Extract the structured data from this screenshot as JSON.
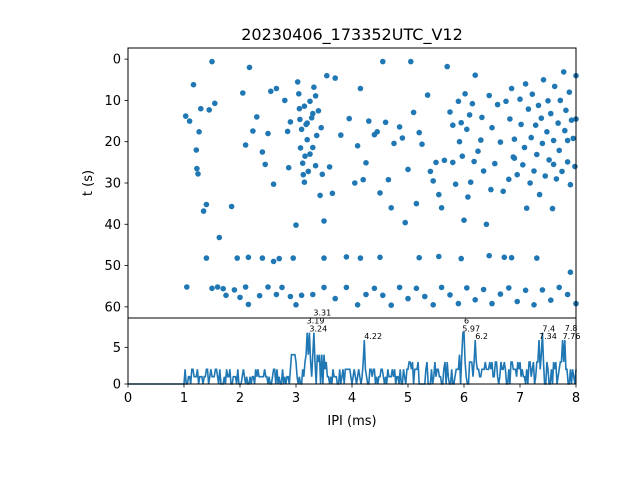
{
  "chart_data": [
    {
      "type": "scatter",
      "title": "20230406_173352UTC_V12",
      "xlabel": "",
      "ylabel": "t (s)",
      "xlim": [
        0,
        8
      ],
      "ylim": [
        62.7,
        -2.7
      ],
      "y_ticks": [
        0,
        10,
        20,
        30,
        40,
        50,
        60
      ],
      "y_tick_labels": [
        "0",
        "10",
        "20",
        "30",
        "40",
        "50",
        "60"
      ],
      "x_ticks": [
        0,
        1,
        2,
        3,
        4,
        5,
        6,
        7,
        8
      ],
      "grid": false,
      "color": "#1f77b4",
      "points": [
        [
          1.03,
          13.8
        ],
        [
          1.1,
          15.0
        ],
        [
          1.17,
          6.2
        ],
        [
          1.22,
          22.0
        ],
        [
          1.23,
          26.5
        ],
        [
          1.25,
          27.8
        ],
        [
          1.27,
          17.6
        ],
        [
          1.3,
          12.0
        ],
        [
          1.35,
          36.8
        ],
        [
          1.4,
          35.2
        ],
        [
          1.45,
          12.3
        ],
        [
          1.5,
          0.6
        ],
        [
          1.55,
          10.7
        ],
        [
          1.63,
          43.2
        ],
        [
          1.7,
          55.6
        ],
        [
          1.85,
          35.7
        ],
        [
          2.05,
          8.2
        ],
        [
          2.1,
          20.8
        ],
        [
          2.17,
          2.0
        ],
        [
          2.23,
          17.4
        ],
        [
          2.3,
          14.0
        ],
        [
          2.4,
          22.5
        ],
        [
          2.45,
          25.5
        ],
        [
          2.5,
          18.0
        ],
        [
          2.55,
          7.8
        ],
        [
          2.6,
          30.3
        ],
        [
          2.65,
          7.1
        ],
        [
          2.7,
          48.3
        ],
        [
          2.8,
          10.0
        ],
        [
          2.85,
          17.5
        ],
        [
          2.87,
          26.3
        ],
        [
          2.9,
          15.2
        ],
        [
          3.0,
          40.2
        ],
        [
          3.03,
          5.5
        ],
        [
          3.05,
          8.4
        ],
        [
          3.06,
          12.0
        ],
        [
          3.07,
          14.6
        ],
        [
          3.08,
          21.5
        ],
        [
          3.1,
          17.0
        ],
        [
          3.12,
          25.2
        ],
        [
          3.13,
          28.0
        ],
        [
          3.15,
          29.8
        ],
        [
          3.16,
          23.5
        ],
        [
          3.18,
          15.8
        ],
        [
          3.2,
          19.5
        ],
        [
          3.22,
          27.2
        ],
        [
          3.25,
          10.2
        ],
        [
          3.28,
          14.2
        ],
        [
          3.3,
          21.4
        ],
        [
          3.32,
          6.8
        ],
        [
          3.35,
          25.8
        ],
        [
          3.37,
          18.5
        ],
        [
          3.4,
          12.5
        ],
        [
          3.43,
          33.0
        ],
        [
          3.45,
          16.6
        ],
        [
          3.47,
          27.9
        ],
        [
          3.5,
          39.2
        ],
        [
          3.55,
          4.0
        ],
        [
          3.6,
          26.1
        ],
        [
          3.65,
          32.5
        ],
        [
          3.7,
          4.6
        ],
        [
          3.8,
          18.4
        ],
        [
          3.95,
          14.4
        ],
        [
          4.05,
          30.0
        ],
        [
          4.1,
          21.0
        ],
        [
          4.15,
          7.1
        ],
        [
          4.2,
          29.2
        ],
        [
          4.25,
          25.1
        ],
        [
          4.3,
          15.0
        ],
        [
          4.4,
          18.3
        ],
        [
          4.5,
          32.4
        ],
        [
          4.55,
          0.6
        ],
        [
          4.65,
          29.2
        ],
        [
          4.7,
          36.0
        ],
        [
          4.75,
          20.4
        ],
        [
          4.85,
          16.4
        ],
        [
          4.9,
          19.1
        ],
        [
          4.95,
          39.6
        ],
        [
          5.0,
          26.7
        ],
        [
          5.05,
          0.6
        ],
        [
          5.1,
          12.9
        ],
        [
          5.15,
          35.0
        ],
        [
          5.2,
          17.8
        ],
        [
          5.25,
          20.6
        ],
        [
          5.35,
          8.7
        ],
        [
          5.4,
          27.2
        ],
        [
          5.45,
          29.5
        ],
        [
          5.5,
          25.0
        ],
        [
          5.55,
          32.8
        ],
        [
          5.6,
          36.0
        ],
        [
          5.65,
          24.5
        ],
        [
          5.7,
          1.8
        ],
        [
          5.75,
          12.8
        ],
        [
          5.8,
          25.0
        ],
        [
          5.85,
          30.3
        ],
        [
          5.9,
          10.2
        ],
        [
          5.92,
          20.0
        ],
        [
          5.95,
          15.4
        ],
        [
          5.97,
          23.5
        ],
        [
          6.0,
          39.0
        ],
        [
          6.02,
          8.4
        ],
        [
          6.05,
          17.0
        ],
        [
          6.07,
          33.4
        ],
        [
          6.1,
          13.5
        ],
        [
          6.12,
          29.8
        ],
        [
          6.15,
          10.8
        ],
        [
          6.18,
          24.8
        ],
        [
          6.2,
          3.9
        ],
        [
          6.25,
          22.3
        ],
        [
          6.3,
          19.6
        ],
        [
          6.32,
          14.1
        ],
        [
          6.35,
          27.1
        ],
        [
          6.4,
          40.0
        ],
        [
          6.45,
          8.8
        ],
        [
          6.48,
          31.6
        ],
        [
          6.5,
          16.6
        ],
        [
          6.55,
          25.3
        ],
        [
          6.6,
          11.0
        ],
        [
          6.65,
          20.1
        ],
        [
          6.7,
          32.0
        ],
        [
          6.72,
          48.0
        ],
        [
          6.75,
          10.2
        ],
        [
          6.8,
          29.1
        ],
        [
          6.82,
          14.5
        ],
        [
          6.85,
          7.1
        ],
        [
          6.88,
          23.7
        ],
        [
          6.9,
          19.4
        ],
        [
          6.95,
          28.0
        ],
        [
          7.0,
          9.7
        ],
        [
          7.02,
          15.8
        ],
        [
          7.05,
          25.6
        ],
        [
          7.08,
          21.4
        ],
        [
          7.1,
          6.0
        ],
        [
          7.12,
          36.1
        ],
        [
          7.15,
          12.1
        ],
        [
          7.18,
          30.0
        ],
        [
          7.2,
          19.0
        ],
        [
          7.22,
          8.5
        ],
        [
          7.25,
          27.1
        ],
        [
          7.28,
          16.0
        ],
        [
          7.3,
          23.1
        ],
        [
          7.33,
          11.2
        ],
        [
          7.35,
          32.8
        ],
        [
          7.38,
          14.3
        ],
        [
          7.4,
          20.4
        ],
        [
          7.42,
          5.0
        ],
        [
          7.45,
          28.3
        ],
        [
          7.48,
          17.6
        ],
        [
          7.5,
          10.1
        ],
        [
          7.52,
          24.4
        ],
        [
          7.55,
          13.2
        ],
        [
          7.58,
          36.2
        ],
        [
          7.6,
          19.7
        ],
        [
          7.62,
          6.6
        ],
        [
          7.65,
          29.0
        ],
        [
          7.68,
          15.5
        ],
        [
          7.7,
          22.1
        ],
        [
          7.72,
          10.0
        ],
        [
          7.75,
          27.2
        ],
        [
          7.78,
          3.1
        ],
        [
          7.8,
          17.3
        ],
        [
          7.82,
          12.4
        ],
        [
          7.85,
          24.9
        ],
        [
          7.88,
          8.0
        ],
        [
          7.9,
          30.4
        ],
        [
          7.92,
          14.8
        ],
        [
          7.95,
          19.2
        ],
        [
          7.98,
          26.0
        ],
        [
          8.0,
          4.0
        ],
        [
          1.05,
          55.2
        ],
        [
          1.5,
          55.5
        ],
        [
          1.6,
          55.2
        ],
        [
          1.75,
          57.2
        ],
        [
          1.9,
          55.9
        ],
        [
          2.0,
          57.7
        ],
        [
          2.1,
          55.2
        ],
        [
          2.15,
          59.4
        ],
        [
          2.35,
          57.3
        ],
        [
          2.5,
          55.2
        ],
        [
          2.65,
          57.0
        ],
        [
          2.75,
          55.3
        ],
        [
          2.9,
          57.5
        ],
        [
          3.0,
          59.5
        ],
        [
          3.1,
          57.2
        ],
        [
          3.3,
          57.0
        ],
        [
          3.5,
          55.3
        ],
        [
          3.7,
          58.0
        ],
        [
          3.9,
          55.3
        ],
        [
          4.1,
          59.5
        ],
        [
          4.25,
          57.0
        ],
        [
          4.4,
          55.5
        ],
        [
          4.55,
          57.2
        ],
        [
          4.7,
          59.6
        ],
        [
          4.85,
          55.3
        ],
        [
          5.0,
          58.0
        ],
        [
          5.15,
          55.5
        ],
        [
          5.3,
          57.5
        ],
        [
          5.45,
          59.5
        ],
        [
          5.6,
          55.3
        ],
        [
          5.75,
          57.1
        ],
        [
          5.9,
          59.2
        ],
        [
          6.05,
          55.4
        ],
        [
          6.2,
          58.3
        ],
        [
          6.35,
          55.8
        ],
        [
          6.5,
          59.2
        ],
        [
          6.65,
          56.9
        ],
        [
          6.8,
          55.4
        ],
        [
          6.95,
          58.7
        ],
        [
          7.1,
          56.0
        ],
        [
          7.25,
          59.5
        ],
        [
          7.4,
          55.9
        ],
        [
          7.55,
          58.4
        ],
        [
          7.7,
          55.3
        ],
        [
          7.85,
          57.0
        ],
        [
          8.0,
          59.2
        ],
        [
          1.4,
          48.2
        ],
        [
          1.95,
          48.2
        ],
        [
          2.15,
          48.0
        ],
        [
          2.4,
          48.2
        ],
        [
          2.6,
          49.0
        ],
        [
          2.95,
          48.2
        ],
        [
          3.5,
          48.2
        ],
        [
          3.9,
          47.9
        ],
        [
          4.15,
          48.2
        ],
        [
          4.5,
          48.0
        ],
        [
          5.2,
          48.1
        ],
        [
          5.55,
          47.8
        ],
        [
          5.95,
          48.3
        ],
        [
          6.45,
          47.6
        ],
        [
          6.85,
          48.1
        ],
        [
          7.3,
          48.2
        ],
        [
          7.9,
          51.6
        ],
        [
          3.2,
          15.5
        ],
        [
          3.25,
          23.0
        ],
        [
          3.3,
          13.2
        ],
        [
          3.35,
          8.9
        ],
        [
          3.15,
          11.4
        ],
        [
          4.45,
          17.6
        ],
        [
          4.6,
          15.3
        ],
        [
          5.8,
          16.0
        ],
        [
          6.9,
          24.0
        ],
        [
          7.6,
          25.5
        ],
        [
          7.85,
          19.7
        ],
        [
          8.0,
          14.5
        ]
      ]
    },
    {
      "type": "line",
      "xlabel": "IPI (ms)",
      "ylabel": "",
      "xlim": [
        0,
        8
      ],
      "ylim": [
        0,
        9
      ],
      "y_ticks": [
        0,
        5
      ],
      "y_tick_labels": [
        "0",
        "5"
      ],
      "x_ticks": [
        0,
        1,
        2,
        3,
        4,
        5,
        6,
        7,
        8
      ],
      "x_tick_labels": [
        "0",
        "1",
        "2",
        "3",
        "4",
        "5",
        "6",
        "7",
        "8"
      ],
      "grid": false,
      "color": "#1f77b4",
      "bin_width": 0.02,
      "peaks": [
        {
          "x": 3.24,
          "y": 7.0
        },
        {
          "x": 3.19,
          "y": 7.0
        },
        {
          "x": 3.31,
          "y": 7.0
        },
        {
          "x": 4.22,
          "y": 6.0
        },
        {
          "x": 5.97,
          "y": 7.0
        },
        {
          "x": 6.0,
          "y": 7.0
        },
        {
          "x": 6.2,
          "y": 6.0
        },
        {
          "x": 7.4,
          "y": 7.0
        },
        {
          "x": 7.34,
          "y": 6.0
        },
        {
          "x": 7.76,
          "y": 6.0
        },
        {
          "x": 7.8,
          "y": 6.0
        }
      ],
      "annotations": [
        {
          "x": 3.24,
          "text": "3.24"
        },
        {
          "x": 3.19,
          "text": "3.19"
        },
        {
          "x": 3.31,
          "text": "3.31"
        },
        {
          "x": 4.22,
          "text": "4.22"
        },
        {
          "x": 5.97,
          "text": "5.97"
        },
        {
          "x": 6.0,
          "text": "6"
        },
        {
          "x": 6.2,
          "text": "6.2"
        },
        {
          "x": 7.4,
          "text": "7.4"
        },
        {
          "x": 7.34,
          "text": "7.34"
        },
        {
          "x": 7.76,
          "text": "7.76"
        },
        {
          "x": 7.8,
          "text": "7.8"
        }
      ]
    }
  ]
}
